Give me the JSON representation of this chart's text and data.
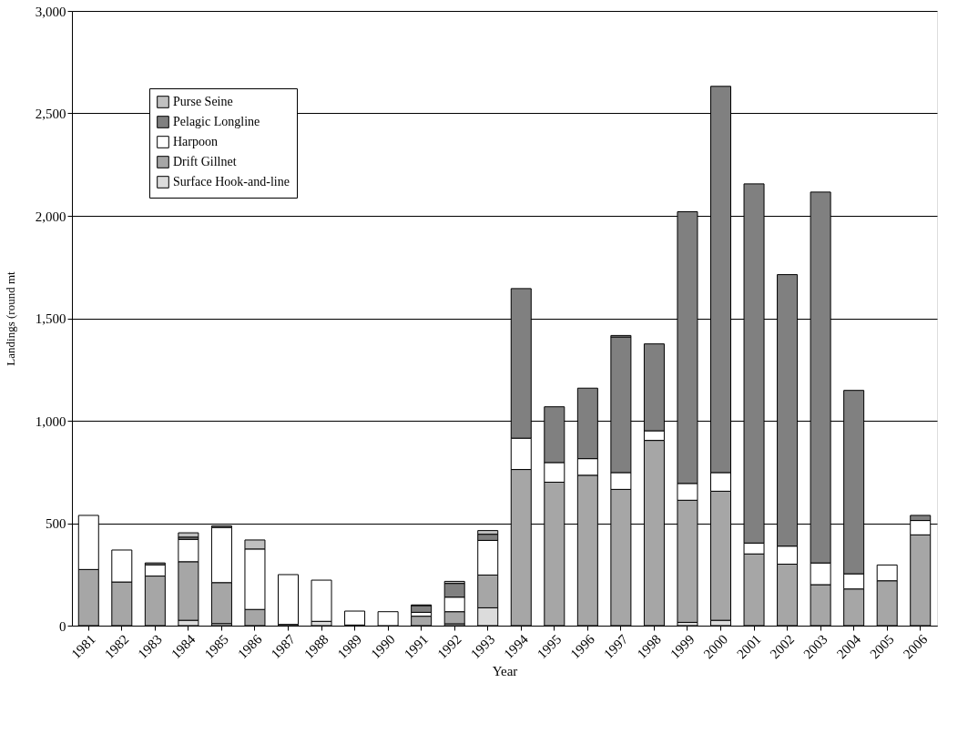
{
  "chart_data": {
    "type": "bar",
    "stacked": true,
    "xlabel": "Year",
    "ylabel": "Landings (round mt",
    "categories": [
      "1981",
      "1982",
      "1983",
      "1984",
      "1985",
      "1986",
      "1987",
      "1988",
      "1989",
      "1990",
      "1991",
      "1992",
      "1993",
      "1994",
      "1995",
      "1996",
      "1997",
      "1998",
      "1999",
      "2000",
      "2001",
      "2002",
      "2003",
      "2004",
      "2005",
      "2006"
    ],
    "series": [
      {
        "name": "Surface Hook-and-line",
        "color": "#dcdcdc",
        "values": [
          null,
          null,
          null,
          26,
          10,
          null,
          null,
          21,
          null,
          null,
          null,
          9,
          87,
          null,
          null,
          null,
          null,
          null,
          16,
          26,
          null,
          null,
          null,
          null,
          null,
          null
        ]
      },
      {
        "name": "Drift Gillnet",
        "color": "#a6a6a6",
        "values": [
          274,
          213,
          242,
          286,
          200,
          79,
          6,
          null,
          3,
          null,
          46,
          59,
          160,
          762,
          700,
          734,
          665,
          904,
          596,
          630,
          350,
          300,
          200,
          179,
          219,
          443
        ]
      },
      {
        "name": "Harpoon",
        "color": "#ffffff",
        "values": [
          264,
          156,
          55,
          109,
          269,
          295,
          243,
          201,
          68,
          68,
          19,
          71,
          169,
          153,
          96,
          81,
          82,
          47,
          82,
          91,
          53,
          88,
          106,
          74,
          77,
          70
        ]
      },
      {
        "name": "Pelagic Longline",
        "color": "#808080",
        "values": [
          null,
          null,
          9,
          11,
          8,
          null,
          null,
          null,
          null,
          null,
          33,
          67,
          30,
          730,
          272,
          344,
          662,
          424,
          1326,
          1885,
          1753,
          1325,
          1810,
          895,
          null,
          25
        ]
      },
      {
        "name": "Purse Seine",
        "color": "#c0c0c0",
        "values": [
          null,
          null,
          null,
          21,
          null,
          44,
          null,
          null,
          null,
          null,
          3,
          10,
          18,
          null,
          null,
          null,
          7,
          null,
          null,
          null,
          null,
          null,
          null,
          null,
          null,
          null
        ]
      }
    ],
    "ylim": [
      0,
      3000
    ],
    "yticks": [
      0,
      500,
      {
        "value": 1000,
        "label": "1,000"
      },
      {
        "value": 1500,
        "label": "1,500"
      },
      {
        "value": 2000,
        "label": "2,000"
      },
      {
        "value": 2500,
        "label": "2,500"
      },
      {
        "value": 3000,
        "label": "3,000"
      }
    ],
    "grid": "y",
    "legend": "top left"
  }
}
